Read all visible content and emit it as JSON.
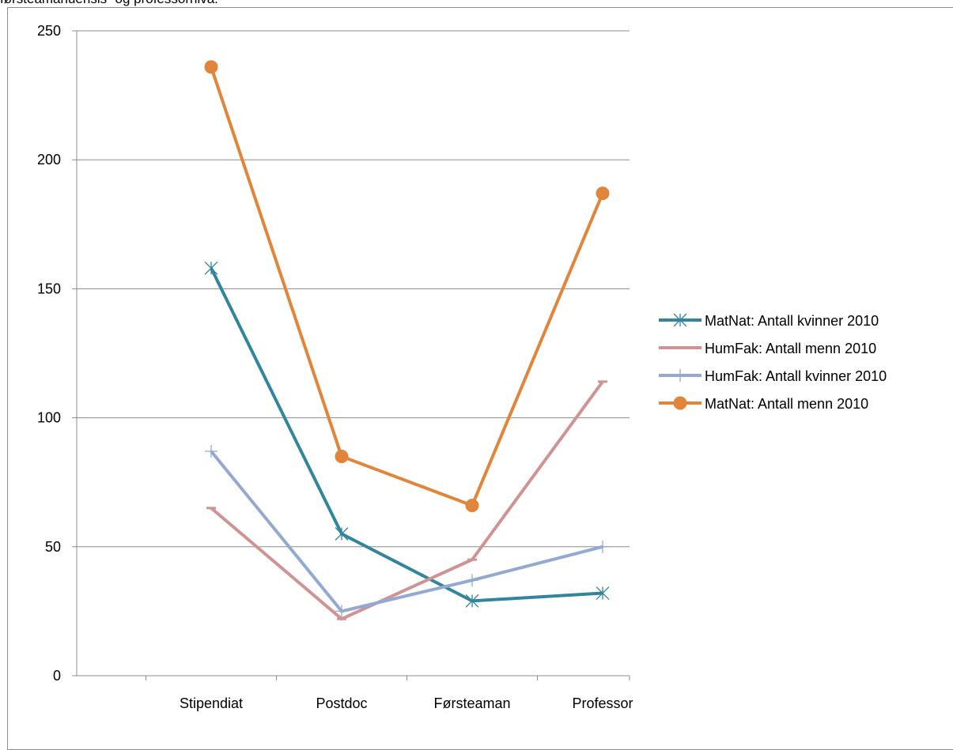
{
  "caption": "førsteamanuensis- og professornivå.",
  "chart_data": {
    "type": "line",
    "categories": [
      "Stipendiat",
      "Postdoc",
      "Førsteaman",
      "Professor"
    ],
    "ylim": [
      0,
      250
    ],
    "yticks": [
      0,
      50,
      100,
      150,
      200,
      250
    ],
    "ytick_labels": [
      "0",
      "50",
      "100",
      "150",
      "200",
      "250"
    ],
    "grid": true,
    "legend_position": "right",
    "series": [
      {
        "name": "MatNat: Antall kvinner 2010",
        "values": [
          158,
          55,
          29,
          32
        ],
        "color": "#31859c",
        "marker": "asterisk"
      },
      {
        "name": "HumFak: Antall menn 2010",
        "values": [
          65,
          22,
          45,
          114
        ],
        "color": "#d09393",
        "marker": "dash"
      },
      {
        "name": "HumFak: Antall kvinner 2010",
        "values": [
          87,
          25,
          37,
          50
        ],
        "color": "#93a9d2",
        "marker": "plus"
      },
      {
        "name": "MatNat: Antall menn 2010",
        "values": [
          236,
          85,
          66,
          187
        ],
        "color": "#e0853a",
        "marker": "circle"
      }
    ]
  }
}
